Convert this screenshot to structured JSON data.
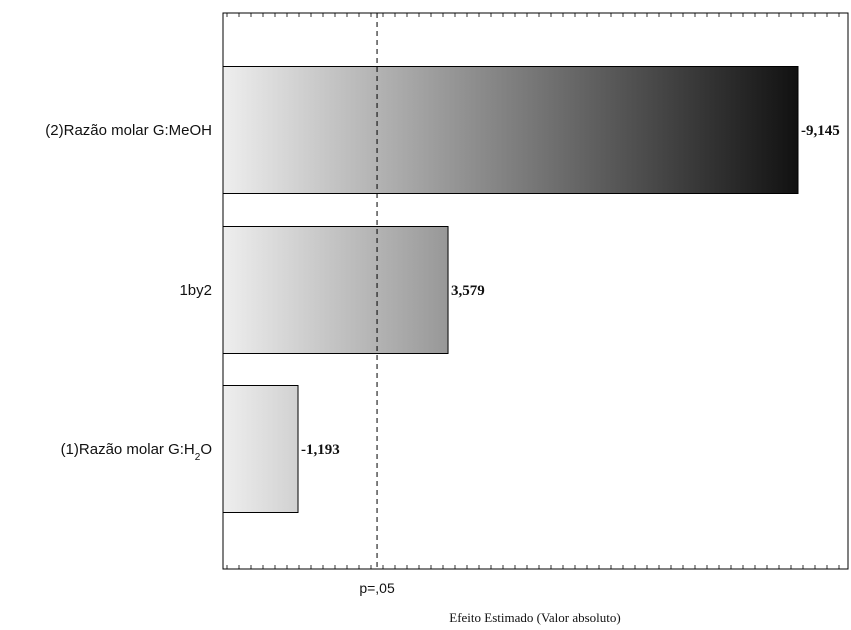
{
  "chart_data": {
    "type": "bar",
    "orientation": "horizontal",
    "title": "",
    "xlabel": "Efeito Estimado (Valor absoluto)",
    "ylabel": "",
    "xlim": [
      0,
      10
    ],
    "grid": false,
    "categories": [
      {
        "label": "(2)Razão molar G:MeOH",
        "label_pre": "(2)Razão molar G:MeOH",
        "label_sub": "",
        "label_post": ""
      },
      {
        "label": "1by2",
        "label_pre": "1by2",
        "label_sub": "",
        "label_post": ""
      },
      {
        "label": "(1)Razão molar G:H2O",
        "label_pre": "(1)Razão molar G:H",
        "label_sub": "2",
        "label_post": "O"
      }
    ],
    "values": [
      9.145,
      3.579,
      1.193
    ],
    "value_labels": [
      "-9,145",
      "3,579",
      "-1,193"
    ],
    "reference_line": {
      "label": "p=,05",
      "value": 2.45
    },
    "colors": {
      "gradient_start": "#eeeeee",
      "gradient_end": "#111111",
      "bar_stroke": "#000000",
      "axis": "#000000",
      "reference_line": "#000000"
    }
  }
}
